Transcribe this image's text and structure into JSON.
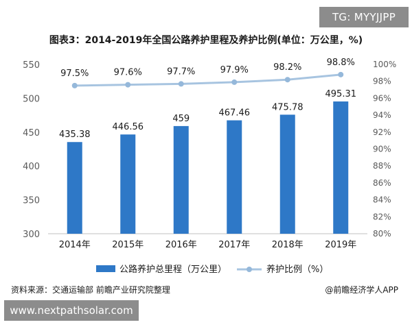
{
  "badge_top": "TG: MYYJJPP",
  "badge_bottom": "www.nextpathsolar.com",
  "source_note": "资料来源：交通运输部 前瞻产业研究院整理",
  "credit": "@前瞻经济学人APP",
  "colors": {
    "bar": "#2e78c7",
    "line": "#a7c4e0",
    "marker": "#95b8da",
    "text": "#1a1a1a",
    "axis": "#595959"
  },
  "chart_data": {
    "type": "bar",
    "title": "图表3：2014-2019年全国公路养护里程及养护比例(单位：万公里，%)",
    "categories": [
      "2014年",
      "2015年",
      "2016年",
      "2017年",
      "2018年",
      "2019年"
    ],
    "series": [
      {
        "name": "公路养护总里程（万公里）",
        "type": "bar",
        "axis": "left",
        "values": [
          435.38,
          446.56,
          459,
          467.46,
          475.78,
          495.31
        ],
        "labels": [
          "435.38",
          "446.56",
          "459",
          "467.46",
          "475.78",
          "495.31"
        ]
      },
      {
        "name": "养护比例（%）",
        "type": "line",
        "axis": "right",
        "values": [
          97.5,
          97.6,
          97.7,
          97.9,
          98.2,
          98.8
        ],
        "labels": [
          "97.5%",
          "97.6%",
          "97.7%",
          "97.9%",
          "98.2%",
          "98.8%"
        ]
      }
    ],
    "y_left": {
      "min": 300,
      "max": 550,
      "ticks": [
        "300",
        "350",
        "400",
        "450",
        "500",
        "550"
      ]
    },
    "y_right": {
      "min": 80,
      "max": 100,
      "ticks": [
        "80%",
        "82%",
        "84%",
        "86%",
        "88%",
        "90%",
        "92%",
        "94%",
        "96%",
        "98%",
        "100%"
      ]
    },
    "grid": false,
    "legend_position": "bottom"
  }
}
